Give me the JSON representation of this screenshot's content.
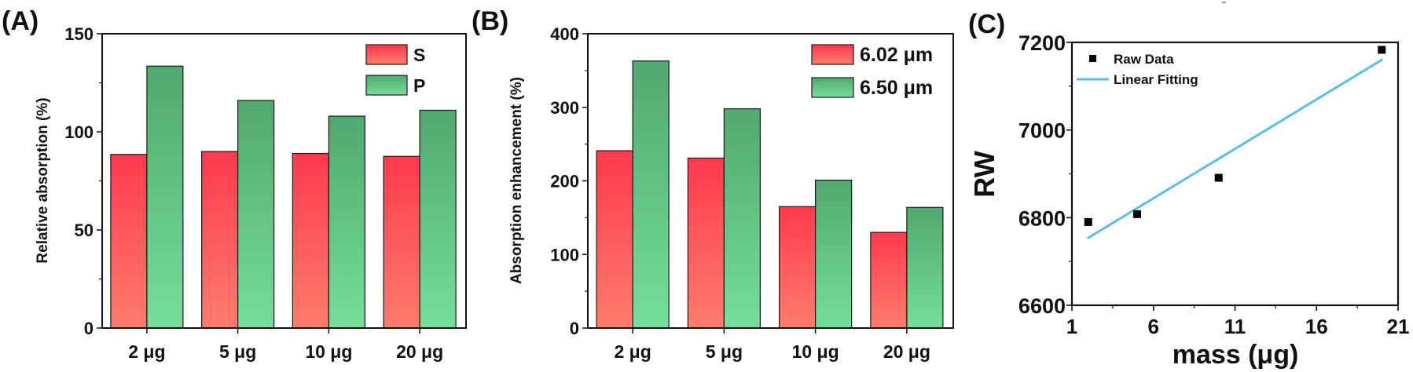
{
  "panels": [
    {
      "label": "(A)"
    },
    {
      "label": "(B)"
    },
    {
      "label": "(C)"
    }
  ],
  "colors": {
    "red_top": "#ff3a4f",
    "red_bottom": "#fe7c6c",
    "green_top": "#50a96f",
    "green_bottom": "#76de99",
    "fit_line": "#5bbde9",
    "marker": "#000000",
    "axis": "#111111"
  },
  "chart_data": [
    {
      "panel": "(A)",
      "type": "bar",
      "title": "",
      "xlabel": "",
      "ylabel": "Relative absorption (%)",
      "categories": [
        "2 μg",
        "5 μg",
        "10 μg",
        "20 μg"
      ],
      "series": [
        {
          "name": "S",
          "values": [
            88.5,
            90,
            89,
            87.5
          ]
        },
        {
          "name": "P",
          "values": [
            133.5,
            116,
            108,
            111
          ]
        }
      ],
      "ylim": [
        0,
        150
      ],
      "yticks": [
        0,
        50,
        100,
        150
      ],
      "legend_position": "top-right",
      "grid": false
    },
    {
      "panel": "(B)",
      "type": "bar",
      "title": "",
      "xlabel": "",
      "ylabel": "Absorption enhancement (%)",
      "categories": [
        "2 μg",
        "5 μg",
        "10 μg",
        "20 μg"
      ],
      "series": [
        {
          "name": "6.02 μm",
          "values": [
            241,
            231,
            165,
            130
          ]
        },
        {
          "name": "6.50 μm",
          "values": [
            363,
            298,
            201,
            164
          ]
        }
      ],
      "ylim": [
        0,
        400
      ],
      "yticks": [
        0,
        100,
        200,
        300,
        400
      ],
      "legend_position": "top-right",
      "grid": false
    },
    {
      "panel": "(C)",
      "type": "scatter",
      "title": "",
      "xlabel": "mass (μg)",
      "ylabel": "RW",
      "series": [
        {
          "name": "Raw Data",
          "x": [
            2,
            5,
            10,
            20
          ],
          "y": [
            6790,
            6808,
            6891,
            7183
          ]
        },
        {
          "name": "Linear Fitting",
          "kind": "line",
          "x": [
            2,
            20
          ],
          "y": [
            6754,
            7160
          ]
        }
      ],
      "xlim": [
        1,
        21
      ],
      "ylim": [
        6600,
        7200
      ],
      "xticks": [
        1,
        6,
        11,
        16,
        21
      ],
      "yticks": [
        6600,
        6800,
        7000,
        7200
      ],
      "legend_position": "top-left",
      "grid": false
    }
  ]
}
